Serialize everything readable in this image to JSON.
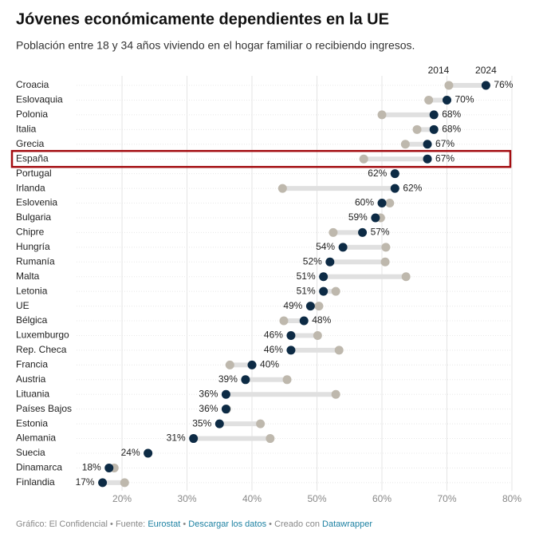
{
  "chart_data": {
    "type": "dumbbell",
    "title": "Jóvenes económicamente dependientes en la UE",
    "subtitle": "Población entre 18 y 34 años viviendo en el hogar familiar o recibiendo ingresos.",
    "categories": [
      "Croacia",
      "Eslovaquia",
      "Polonia",
      "Italia",
      "Grecia",
      "España",
      "Portugal",
      "Irlanda",
      "Eslovenia",
      "Bulgaria",
      "Chipre",
      "Hungría",
      "Rumanía",
      "Malta",
      "Letonia",
      "UE",
      "Bélgica",
      "Luxemburgo",
      "Rep. Checa",
      "Francia",
      "Austria",
      "Lituania",
      "Países Bajos",
      "Estonia",
      "Alemania",
      "Suecia",
      "Dinamarca",
      "Finlandia"
    ],
    "series": [
      {
        "name": "2014",
        "color": "#beb8ad",
        "values": [
          70.3,
          67.2,
          60.0,
          65.4,
          63.6,
          57.2,
          62.0,
          44.7,
          61.2,
          59.8,
          52.5,
          60.6,
          60.5,
          63.7,
          52.9,
          50.3,
          44.9,
          50.1,
          53.4,
          36.6,
          45.4,
          52.9,
          36.1,
          41.3,
          42.8,
          24.0,
          18.8,
          20.4
        ]
      },
      {
        "name": "2024",
        "color": "#0d2b45",
        "values": [
          76,
          70,
          68,
          68,
          67,
          67,
          62,
          62,
          60,
          59,
          57,
          54,
          52,
          51,
          51,
          49,
          48,
          46,
          46,
          40,
          39,
          36,
          36,
          35,
          31,
          24,
          18,
          17
        ],
        "value_labels": [
          "76%",
          "70%",
          "68%",
          "68%",
          "67%",
          "67%",
          "62%",
          "62%",
          "60%",
          "59%",
          "57%",
          "54%",
          "52%",
          "51%",
          "51%",
          "49%",
          "48%",
          "46%",
          "46%",
          "40%",
          "39%",
          "36%",
          "36%",
          "35%",
          "31%",
          "24%",
          "18%",
          "17%"
        ]
      }
    ],
    "highlight": "España",
    "xlim": [
      13,
      80
    ],
    "xticks": [
      {
        "value": 20,
        "label": "20%"
      },
      {
        "value": 30,
        "label": "30%"
      },
      {
        "value": 40,
        "label": "40%"
      },
      {
        "value": 50,
        "label": "50%"
      },
      {
        "value": 60,
        "label": "60%"
      },
      {
        "value": 70,
        "label": "70%"
      },
      {
        "value": 80,
        "label": "80%"
      }
    ],
    "grid": true,
    "footer": {
      "credit": "Gráfico: El Confidencial",
      "separator": "•",
      "source_label": "Fuente:",
      "source": "Eurostat",
      "download": "Descargar los datos",
      "made_with": "Creado con",
      "tool": "Datawrapper"
    }
  }
}
